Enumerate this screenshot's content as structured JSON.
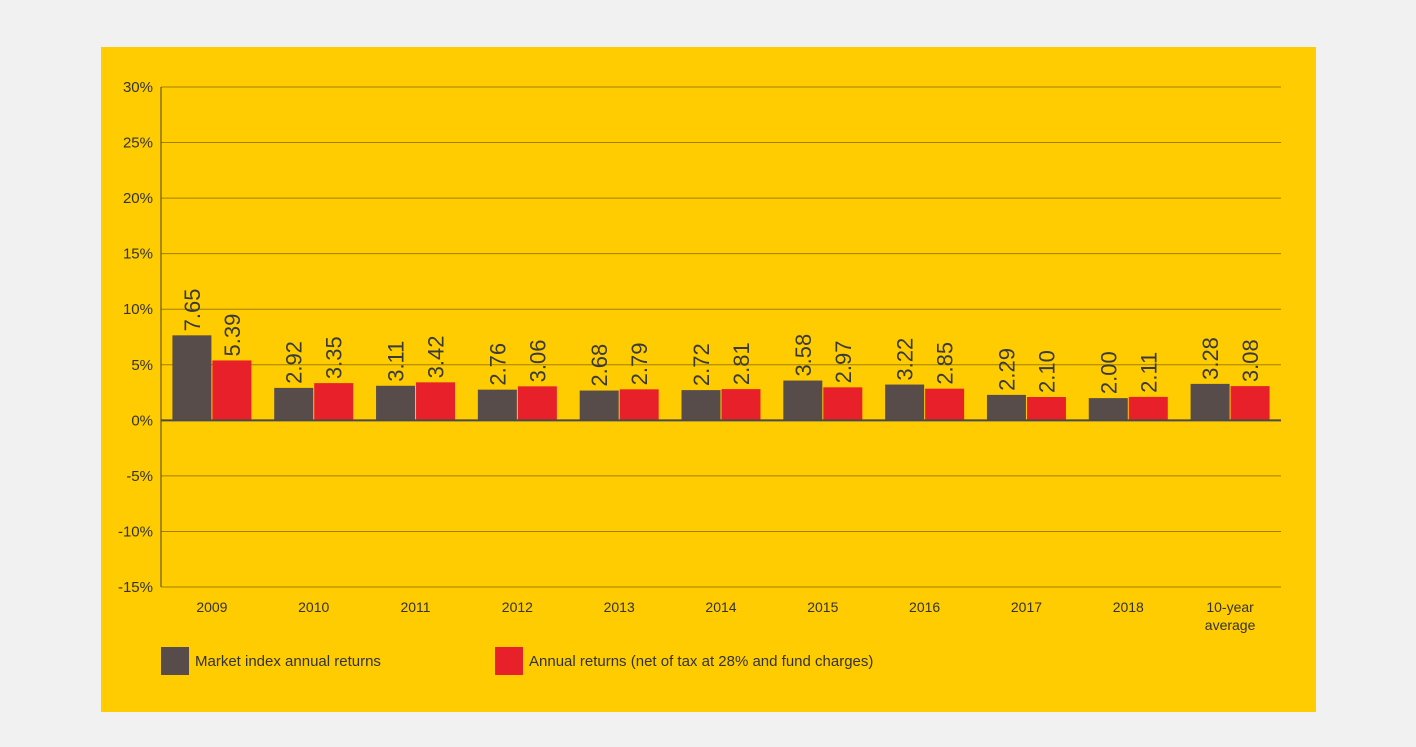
{
  "chart_data": {
    "type": "bar",
    "categories": [
      "2009",
      "2010",
      "2011",
      "2012",
      "2013",
      "2014",
      "2015",
      "2016",
      "2017",
      "2018",
      "10-year average"
    ],
    "category_lines": [
      [
        "2009"
      ],
      [
        "2010"
      ],
      [
        "2011"
      ],
      [
        "2012"
      ],
      [
        "2013"
      ],
      [
        "2014"
      ],
      [
        "2015"
      ],
      [
        "2016"
      ],
      [
        "2017"
      ],
      [
        "2018"
      ],
      [
        "10-year",
        "average"
      ]
    ],
    "series": [
      {
        "name": "Market index annual returns",
        "color": "#584c4a",
        "values": [
          7.65,
          2.92,
          3.11,
          2.76,
          2.68,
          2.72,
          3.58,
          3.22,
          2.29,
          2.0,
          3.28
        ],
        "labels": [
          "7.65",
          "2.92",
          "3.11",
          "2.76",
          "2.68",
          "2.72",
          "3.58",
          "3.22",
          "2.29",
          "2.00",
          "3.28"
        ]
      },
      {
        "name": "Annual returns (net of tax at 28% and fund charges)",
        "color": "#e8202a",
        "values": [
          5.39,
          3.35,
          3.42,
          3.06,
          2.79,
          2.81,
          2.97,
          2.85,
          2.1,
          2.11,
          3.08
        ],
        "labels": [
          "5.39",
          "3.35",
          "3.42",
          "3.06",
          "2.79",
          "2.81",
          "2.97",
          "2.85",
          "2.10",
          "2.11",
          "3.08"
        ]
      }
    ],
    "ylim": [
      -15,
      30
    ],
    "yticks": [
      30,
      25,
      20,
      15,
      10,
      5,
      0,
      -5,
      -10,
      -15
    ],
    "ytick_labels": [
      "30%",
      "25%",
      "20%",
      "15%",
      "10%",
      "5%",
      "0%",
      "-5%",
      "-10%",
      "-15%"
    ],
    "grid": true,
    "legend_position": "bottom-left",
    "background_color": "#fecc00",
    "page_background": "#f1f1f2"
  }
}
